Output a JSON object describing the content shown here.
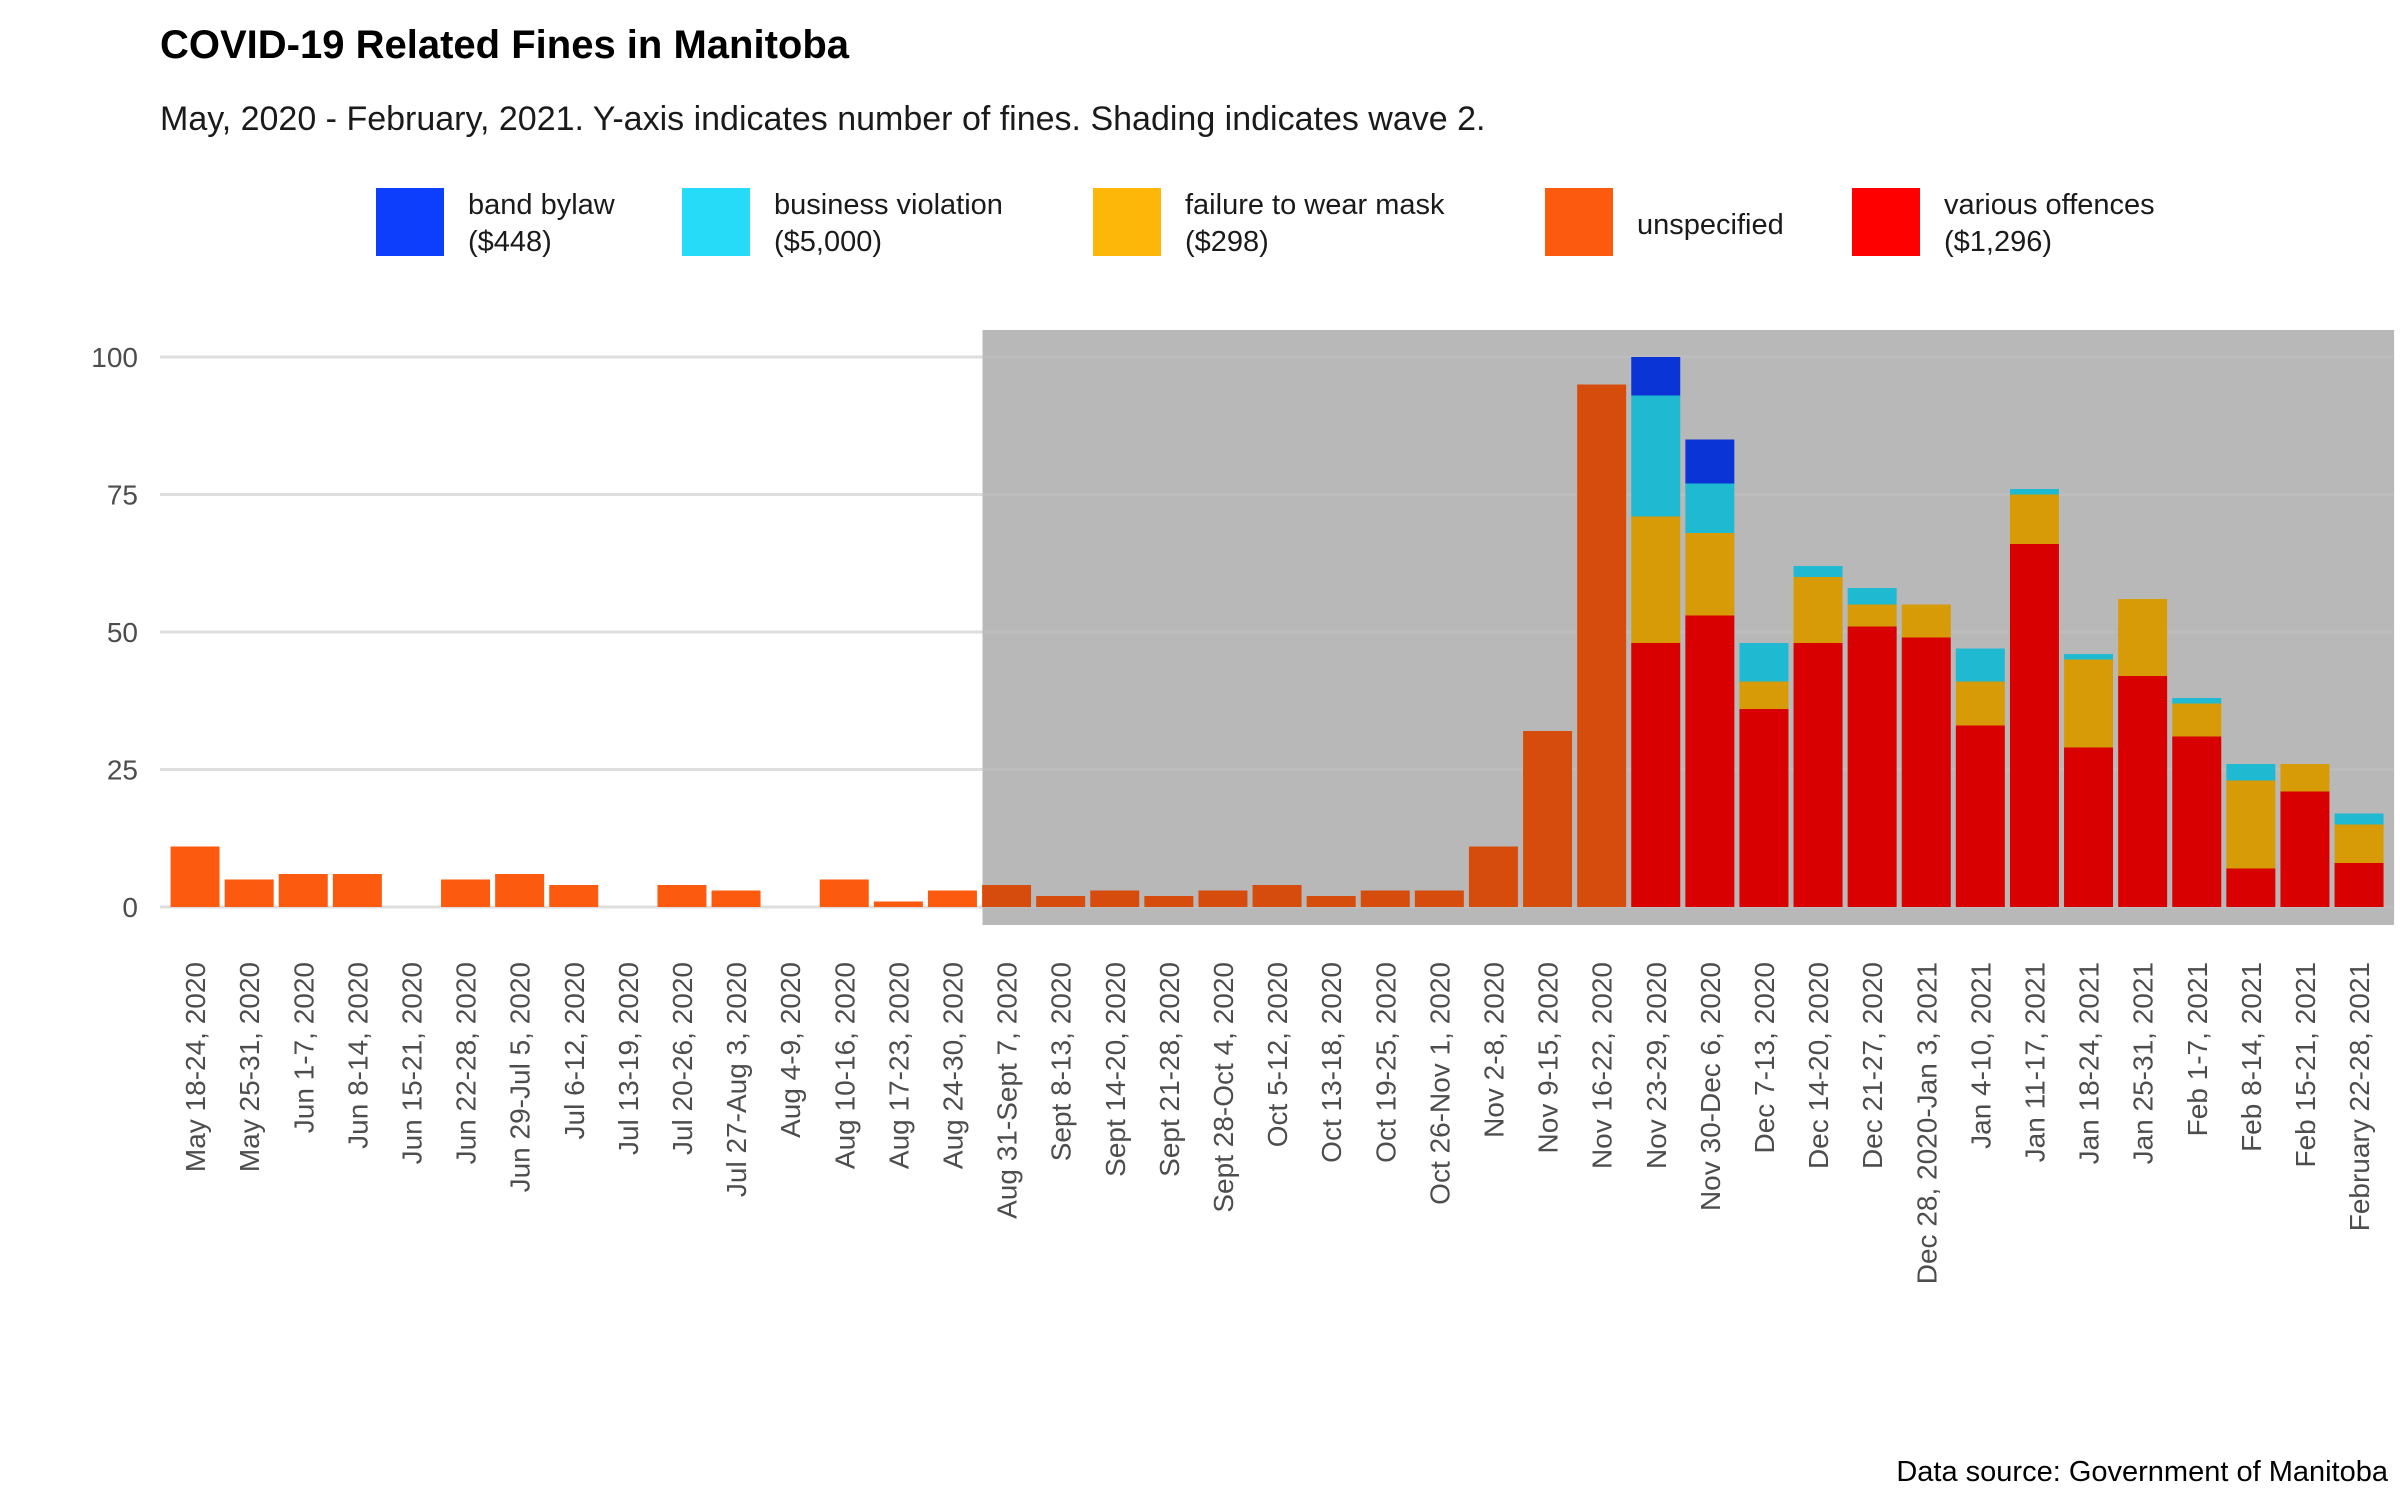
{
  "chart_data": {
    "type": "bar",
    "stacked": true,
    "title": "COVID-19 Related Fines in Manitoba",
    "subtitle": "May, 2020 - February, 2021. Y-axis indicates number of fines. Shading indicates wave 2.",
    "caption": "Data source: Government of Manitoba",
    "xlabel": "",
    "ylabel": "",
    "ylim": [
      0,
      100
    ],
    "yticks": [
      0,
      25,
      50,
      75,
      100
    ],
    "grid": "horizontal",
    "legend_position": "top",
    "shaded_region": {
      "from": "Aug 31-Sept 7, 2020",
      "to": "February 22-28, 2021",
      "color": "#d9d9d9"
    },
    "categories": [
      "May 18-24, 2020",
      "May 25-31, 2020",
      "Jun 1-7, 2020",
      "Jun 8-14, 2020",
      "Jun 15-21, 2020",
      "Jun 22-28, 2020",
      "Jun 29-Jul 5, 2020",
      "Jul 6-12, 2020",
      "Jul 13-19, 2020",
      "Jul 20-26, 2020",
      "Jul 27-Aug 3, 2020",
      "Aug 4-9, 2020",
      "Aug 10-16, 2020",
      "Aug 17-23, 2020",
      "Aug 24-30, 2020",
      "Aug 31-Sept 7, 2020",
      "Sept 8-13, 2020",
      "Sept 14-20, 2020",
      "Sept 21-28, 2020",
      "Sept 28-Oct 4, 2020",
      "Oct 5-12, 2020",
      "Oct 13-18, 2020",
      "Oct 19-25, 2020",
      "Oct 26-Nov 1, 2020",
      "Nov 2-8, 2020",
      "Nov 9-15, 2020",
      "Nov 16-22, 2020",
      "Nov 23-29, 2020",
      "Nov 30-Dec 6, 2020",
      "Dec 7-13, 2020",
      "Dec 14-20, 2020",
      "Dec 21-27, 2020",
      "Dec 28, 2020-Jan 3, 2021",
      "Jan 4-10, 2021",
      "Jan 11-17, 2021",
      "Jan 18-24, 2021",
      "Jan 25-31, 2021",
      "Feb 1-7, 2021",
      "Feb 8-14, 2021",
      "Feb 15-21, 2021",
      "February 22-28, 2021"
    ],
    "series": [
      {
        "name": "various offences",
        "legend_label": [
          "various offences",
          "($1,296)"
        ],
        "color": "#fe0000",
        "values": [
          0,
          0,
          0,
          0,
          0,
          0,
          0,
          0,
          0,
          0,
          0,
          0,
          0,
          0,
          0,
          0,
          0,
          0,
          0,
          0,
          0,
          0,
          0,
          0,
          0,
          0,
          0,
          48,
          53,
          36,
          48,
          51,
          49,
          33,
          66,
          29,
          42,
          31,
          7,
          21,
          8
        ]
      },
      {
        "name": "failure to wear mask",
        "legend_label": [
          "failure to wear mask",
          "($298)"
        ],
        "color": "#fcb708",
        "values": [
          0,
          0,
          0,
          0,
          0,
          0,
          0,
          0,
          0,
          0,
          0,
          0,
          0,
          0,
          0,
          0,
          0,
          0,
          0,
          0,
          0,
          0,
          0,
          0,
          0,
          0,
          0,
          23,
          15,
          5,
          12,
          4,
          6,
          8,
          9,
          16,
          14,
          6,
          16,
          5,
          7
        ]
      },
      {
        "name": "unspecified",
        "legend_label": [
          "unspecified"
        ],
        "color": "#fb5a0f",
        "values": [
          11,
          5,
          6,
          6,
          0,
          5,
          6,
          4,
          0,
          4,
          3,
          0,
          5,
          1,
          3,
          4,
          2,
          3,
          2,
          3,
          4,
          2,
          3,
          3,
          11,
          32,
          95,
          0,
          0,
          0,
          0,
          0,
          0,
          0,
          0,
          0,
          0,
          0,
          0,
          0,
          0
        ]
      },
      {
        "name": "business violation",
        "legend_label": [
          "business violation",
          "($5,000)"
        ],
        "color": "#25dbf7",
        "values": [
          0,
          0,
          0,
          0,
          0,
          0,
          0,
          0,
          0,
          0,
          0,
          0,
          0,
          0,
          0,
          0,
          0,
          0,
          0,
          0,
          0,
          0,
          0,
          0,
          0,
          0,
          0,
          22,
          9,
          7,
          2,
          3,
          0,
          6,
          1,
          1,
          0,
          1,
          3,
          0,
          2
        ]
      },
      {
        "name": "band bylaw",
        "legend_label": [
          "band bylaw",
          "($448)"
        ],
        "color": "#0c3efc",
        "values": [
          0,
          0,
          0,
          0,
          0,
          0,
          0,
          0,
          0,
          0,
          0,
          0,
          0,
          0,
          0,
          0,
          0,
          0,
          0,
          0,
          0,
          0,
          0,
          0,
          0,
          0,
          0,
          7,
          8,
          0,
          0,
          0,
          0,
          0,
          0,
          0,
          0,
          0,
          0,
          0,
          0
        ]
      }
    ],
    "legend_order": [
      "band bylaw",
      "business violation",
      "failure to wear mask",
      "unspecified",
      "various offences"
    ]
  }
}
